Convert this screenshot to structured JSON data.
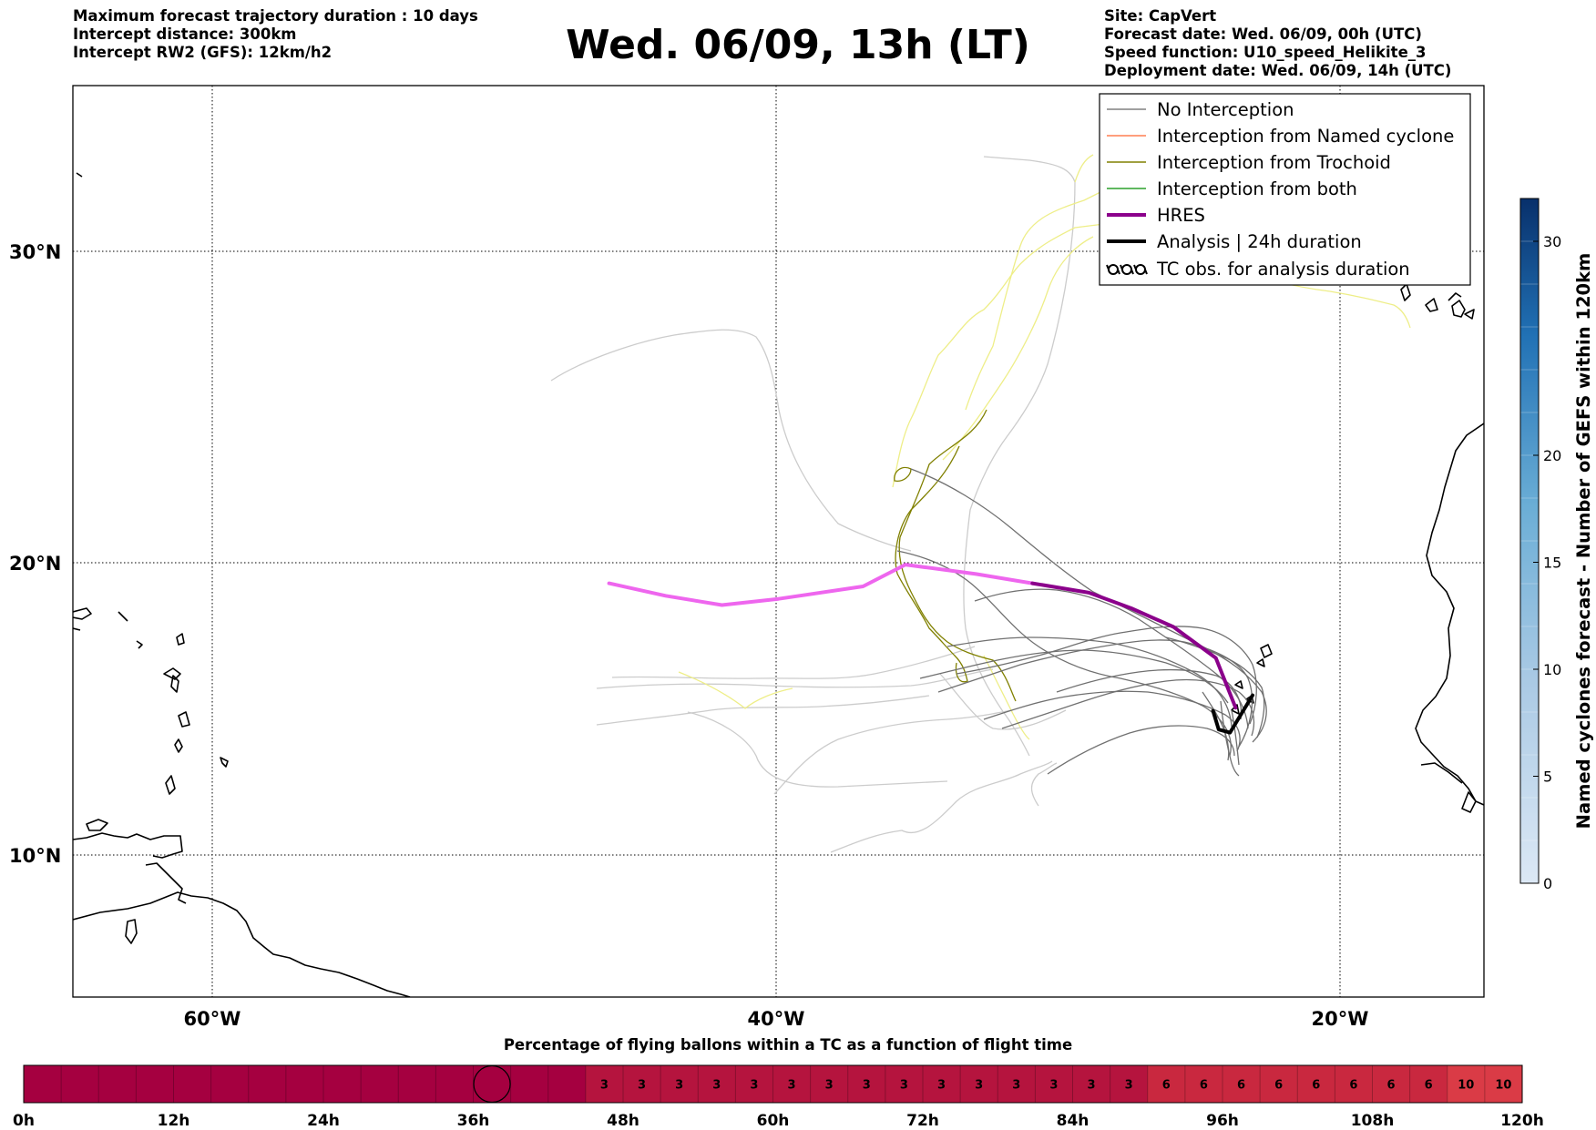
{
  "header": {
    "left_lines": [
      "Maximum forecast trajectory duration : 10 days",
      "Intercept distance: 300km",
      "Intercept RW2 (GFS):  12km/h2"
    ],
    "title": "Wed. 06/09, 13h (LT)",
    "right_lines": [
      "Site: CapVert",
      "Forecast date: Wed. 06/09, 00h (UTC)",
      "Speed function: U10_speed_Helikite_3",
      "Deployment date: Wed. 06/09, 14h (UTC)"
    ]
  },
  "map": {
    "lon_labels": [
      "60°W",
      "40°W",
      "20°W"
    ],
    "lat_labels": [
      "30°N",
      "20°N",
      "10°N"
    ],
    "extent": {
      "lon_min": -65,
      "lon_max": -15,
      "lat_min": 5,
      "lat_max": 34.3
    },
    "grid": true,
    "colors": {
      "no_interception": "#808080",
      "named_cyclone": "#ff7f50",
      "trochoid": "#808000",
      "both": "#2ca02c",
      "hres": "#8b008b",
      "hres_light": "#ee66ee",
      "analysis": "#000000",
      "light_gray": "#cccccc",
      "light_yellow": "#eeee88"
    }
  },
  "legend": {
    "placement": "top-right",
    "items": [
      {
        "label": "No Interception",
        "color": "#808080",
        "style": "thin"
      },
      {
        "label": "Interception from Named cyclone",
        "color": "#ff7f50",
        "style": "thin"
      },
      {
        "label": "Interception from Trochoid",
        "color": "#808000",
        "style": "thin"
      },
      {
        "label": "Interception from both",
        "color": "#2ca02c",
        "style": "thin"
      },
      {
        "label": "HRES",
        "color": "#8b008b",
        "style": "thick"
      },
      {
        "label": "Analysis | 24h duration",
        "color": "#000000",
        "style": "thick"
      },
      {
        "label": "TC obs. for analysis duration",
        "color": "#000000",
        "style": "symbol",
        "icon": "tc-symbols-icon"
      }
    ]
  },
  "colorbar": {
    "title": "Named cyclones forecast - Number of GEFS within 120km",
    "ticks": [
      "0",
      "5",
      "10",
      "15",
      "20",
      "30"
    ],
    "range": [
      0,
      32
    ]
  },
  "progress_bar": {
    "title": "Percentage of flying ballons within a TC as a function of flight time",
    "tick_labels": [
      "0h",
      "12h",
      "24h",
      "36h",
      "48h",
      "60h",
      "72h",
      "84h",
      "96h",
      "108h",
      "120h"
    ],
    "cell_values": [
      "",
      "",
      "",
      "",
      "",
      "",
      "",
      "",
      "",
      "",
      "",
      "",
      "",
      "",
      "",
      "3",
      "3",
      "3",
      "3",
      "3",
      "3",
      "3",
      "3",
      "3",
      "3",
      "3",
      "3",
      "3",
      "3",
      "3",
      "6",
      "6",
      "6",
      "6",
      "6",
      "6",
      "6",
      "6",
      "10",
      "10"
    ],
    "cell_colors": {
      "0": "#a50040",
      "3": "#b5143e",
      "6": "#c9283f",
      "10": "#da3b46"
    },
    "marker_cell": 12
  },
  "chart_data": {
    "type": "map-trajectories",
    "hres_track": [
      [
        -46.0,
        18.3
      ],
      [
        -44.0,
        17.9
      ],
      [
        -42.0,
        17.6
      ],
      [
        -40.0,
        17.8
      ],
      [
        -37.0,
        18.2
      ],
      [
        -35.5,
        18.9
      ],
      [
        -33.0,
        18.6
      ],
      [
        -31.0,
        18.3
      ],
      [
        -29.0,
        18.0
      ],
      [
        -27.5,
        17.5
      ],
      [
        -26.0,
        16.9
      ],
      [
        -24.5,
        15.9
      ],
      [
        -23.8,
        14.3
      ]
    ],
    "analysis_track": [
      [
        -23.2,
        14.7
      ],
      [
        -23.6,
        14.1
      ],
      [
        -24.0,
        13.5
      ],
      [
        -24.4,
        13.6
      ],
      [
        -24.6,
        14.2
      ]
    ]
  }
}
